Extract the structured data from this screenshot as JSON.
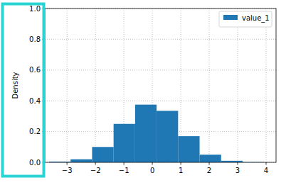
{
  "chart_data": {
    "type": "histogram",
    "y_label": "Density",
    "bins": [
      -3.63,
      -2.874,
      -2.118,
      -1.362,
      -0.606,
      0.15,
      0.906,
      1.662,
      2.418,
      3.174,
      3.93
    ],
    "series": [
      {
        "name": "value_1",
        "color": "#1f77b4",
        "values": [
          0.005,
          0.02,
          0.1,
          0.25,
          0.375,
          0.335,
          0.17,
          0.05,
          0.01,
          0.002
        ]
      }
    ],
    "xlim": [
      -3.78,
      4.35
    ],
    "ylim": [
      0,
      1
    ],
    "xticks": [
      -3,
      -2,
      -1,
      0,
      1,
      2,
      3,
      4
    ],
    "yticks": [
      {
        "value": 0,
        "label": "0.0"
      },
      {
        "value": 0.2,
        "label": "0.2"
      },
      {
        "value": 0.4,
        "label": "0.4"
      },
      {
        "value": 0.6,
        "label": "0.6"
      },
      {
        "value": 0.8,
        "label": "0.8"
      },
      {
        "value": 1,
        "label": "1.0"
      }
    ],
    "grid": true,
    "legend": "upper right"
  }
}
